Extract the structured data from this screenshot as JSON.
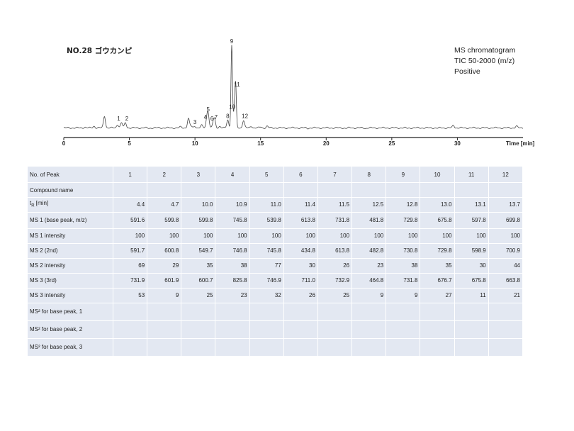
{
  "sample_title": "NO.28 ゴウカンピ",
  "info_lines": [
    "MS chromatogram",
    "TIC 50-2000 (m/z)",
    "Positive"
  ],
  "chart_data": {
    "type": "line",
    "xlabel": "Time [min]",
    "xlim": [
      0,
      35
    ],
    "x_ticks": [
      0,
      5,
      10,
      15,
      20,
      25,
      30,
      35
    ],
    "ylim": [
      0,
      1
    ],
    "baseline": 0.03,
    "series": [
      {
        "peaks": [
          {
            "x": 1.6,
            "y": 0.04
          },
          {
            "x": 2.0,
            "y": 0.03
          },
          {
            "x": 2.3,
            "y": 0.05
          },
          {
            "x": 2.5,
            "y": 0.03
          },
          {
            "x": 3.1,
            "y": 0.17
          },
          {
            "x": 4.1,
            "y": 0.07
          },
          {
            "x": 4.4,
            "y": 0.09
          },
          {
            "x": 4.7,
            "y": 0.09
          },
          {
            "x": 5.6,
            "y": 0.03
          },
          {
            "x": 6.5,
            "y": 0.025
          },
          {
            "x": 8.9,
            "y": 0.04
          },
          {
            "x": 9.5,
            "y": 0.14
          },
          {
            "x": 9.7,
            "y": 0.05
          },
          {
            "x": 10.0,
            "y": 0.05
          },
          {
            "x": 10.5,
            "y": 0.06
          },
          {
            "x": 10.9,
            "y": 0.11
          },
          {
            "x": 11.0,
            "y": 0.2
          },
          {
            "x": 11.4,
            "y": 0.09
          },
          {
            "x": 11.5,
            "y": 0.11
          },
          {
            "x": 11.9,
            "y": 0.05
          },
          {
            "x": 12.5,
            "y": 0.12
          },
          {
            "x": 12.8,
            "y": 1.0
          },
          {
            "x": 13.0,
            "y": 0.23
          },
          {
            "x": 13.1,
            "y": 0.49
          },
          {
            "x": 13.7,
            "y": 0.12
          },
          {
            "x": 14.3,
            "y": 0.05
          },
          {
            "x": 15.0,
            "y": 0.04
          },
          {
            "x": 15.5,
            "y": 0.05
          },
          {
            "x": 16.2,
            "y": 0.03
          },
          {
            "x": 17.0,
            "y": 0.03
          },
          {
            "x": 18.6,
            "y": 0.025
          },
          {
            "x": 21.5,
            "y": 0.025
          },
          {
            "x": 23.0,
            "y": 0.025
          },
          {
            "x": 26.2,
            "y": 0.025
          },
          {
            "x": 28.5,
            "y": 0.025
          },
          {
            "x": 29.7,
            "y": 0.06
          },
          {
            "x": 31.2,
            "y": 0.03
          },
          {
            "x": 33.5,
            "y": 0.03
          },
          {
            "x": 34.5,
            "y": 0.05
          }
        ]
      }
    ],
    "annotations": [
      {
        "text": "1",
        "x": 4.4,
        "y": 0.09
      },
      {
        "text": "2",
        "x": 4.7,
        "y": 0.09
      },
      {
        "text": "3",
        "x": 10.0,
        "y": 0.05
      },
      {
        "text": "4",
        "x": 10.9,
        "y": 0.11
      },
      {
        "text": "5",
        "x": 11.0,
        "y": 0.2
      },
      {
        "text": "6",
        "x": 11.4,
        "y": 0.09
      },
      {
        "text": "7",
        "x": 11.5,
        "y": 0.11
      },
      {
        "text": "8",
        "x": 12.5,
        "y": 0.12
      },
      {
        "text": "9",
        "x": 12.8,
        "y": 1.0
      },
      {
        "text": "10",
        "x": 13.0,
        "y": 0.23
      },
      {
        "text": "11",
        "x": 13.1,
        "y": 0.49
      },
      {
        "text": "12",
        "x": 13.7,
        "y": 0.12
      }
    ]
  },
  "table": {
    "header_label": "No. of Peak",
    "peak_numbers": [
      "1",
      "2",
      "3",
      "4",
      "5",
      "6",
      "7",
      "8",
      "9",
      "10",
      "11",
      "12"
    ],
    "rows": [
      {
        "label": "Compound name",
        "values": [
          "",
          "",
          "",
          "",
          "",
          "",
          "",
          "",
          "",
          "",
          "",
          ""
        ]
      },
      {
        "label": "tR [min]",
        "values": [
          "4.4",
          "4.7",
          "10.0",
          "10.9",
          "11.0",
          "11.4",
          "11.5",
          "12.5",
          "12.8",
          "13.0",
          "13.1",
          "13.7"
        ]
      },
      {
        "label": "MS 1 (base peak, m/z)",
        "values": [
          "591.6",
          "599.8",
          "599.8",
          "745.8",
          "539.8",
          "613.8",
          "731.8",
          "481.8",
          "729.8",
          "675.8",
          "597.8",
          "699.8"
        ]
      },
      {
        "label": "MS 1 intensity",
        "values": [
          "100",
          "100",
          "100",
          "100",
          "100",
          "100",
          "100",
          "100",
          "100",
          "100",
          "100",
          "100"
        ]
      },
      {
        "label": "MS 2 (2nd)",
        "values": [
          "591.7",
          "600.8",
          "549.7",
          "746.8",
          "745.8",
          "434.8",
          "613.8",
          "482.8",
          "730.8",
          "729.8",
          "598.9",
          "700.9"
        ]
      },
      {
        "label": "MS 2 intensity",
        "values": [
          "69",
          "29",
          "35",
          "38",
          "77",
          "30",
          "26",
          "23",
          "38",
          "35",
          "30",
          "44"
        ]
      },
      {
        "label": "MS 3 (3rd)",
        "values": [
          "731.9",
          "601.9",
          "600.7",
          "825.8",
          "746.9",
          "711.0",
          "732.9",
          "464.8",
          "731.8",
          "676.7",
          "675.8",
          "663.8"
        ]
      },
      {
        "label": "MS 3 intensity",
        "values": [
          "53",
          "9",
          "25",
          "23",
          "32",
          "26",
          "25",
          "9",
          "9",
          "27",
          "11",
          "21"
        ]
      },
      {
        "label": "MS² for base peak, 1",
        "values": [
          "",
          "",
          "",
          "",
          "",
          "",
          "",
          "",
          "",
          "",
          "",
          ""
        ]
      },
      {
        "label": "MS² for base peak, 2",
        "values": [
          "",
          "",
          "",
          "",
          "",
          "",
          "",
          "",
          "",
          "",
          "",
          ""
        ]
      },
      {
        "label": "MS² for base peak, 3",
        "values": [
          "",
          "",
          "",
          "",
          "",
          "",
          "",
          "",
          "",
          "",
          "",
          ""
        ]
      }
    ]
  }
}
